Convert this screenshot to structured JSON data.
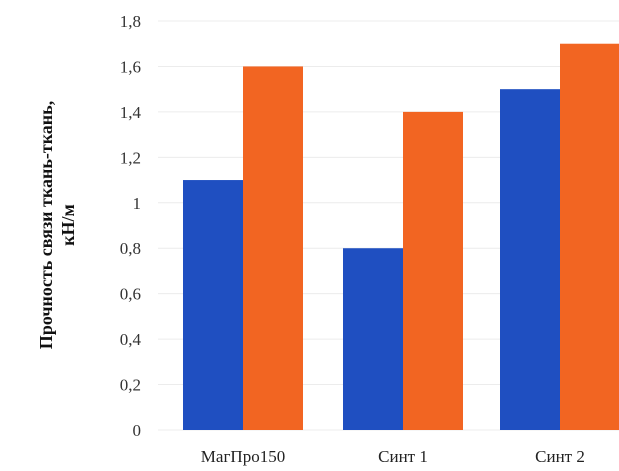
{
  "chart_data": {
    "type": "bar",
    "categories": [
      "МагПро150",
      "Синт 1",
      "Синт 2"
    ],
    "series": [
      {
        "values": [
          1.1,
          0.8,
          1.5
        ],
        "color": "#1f4fc1"
      },
      {
        "values": [
          1.6,
          1.4,
          1.7
        ],
        "color": "#f26522"
      }
    ],
    "ylabel_line1": "Прочность связи ткань-ткань,",
    "ylabel_line2": "кН/м",
    "ylim": [
      0,
      1.8
    ],
    "yticks": [
      "0",
      "0,2",
      "0,4",
      "0,6",
      "0,8",
      "1",
      "1,2",
      "1,4",
      "1,6",
      "1,8"
    ],
    "ytick_values": [
      0,
      0.2,
      0.4,
      0.6,
      0.8,
      1.0,
      1.2,
      1.4,
      1.6,
      1.8
    ],
    "grid": true,
    "legend": "none"
  }
}
